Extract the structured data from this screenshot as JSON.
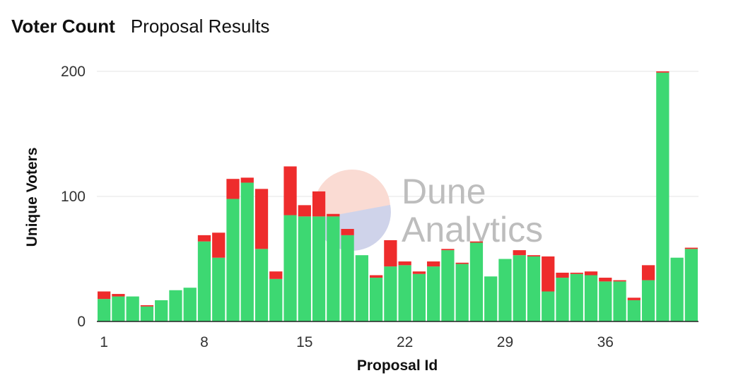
{
  "tabs": [
    {
      "label": "Voter Count",
      "active": true
    },
    {
      "label": "Proposal Results",
      "active": false
    }
  ],
  "watermark": {
    "line1": "Dune",
    "line2": "Analytics"
  },
  "colors": {
    "for": "#3dd872",
    "against": "#ee2c2c",
    "grid": "#e6e6e6"
  },
  "chart_data": {
    "type": "bar",
    "stacked": true,
    "xlabel": "Proposal Id",
    "ylabel": "Unique Voters",
    "ylim": [
      0,
      200
    ],
    "yticks": [
      0,
      100,
      200
    ],
    "xticks": [
      1,
      8,
      15,
      22,
      29,
      36
    ],
    "grid": true,
    "x": [
      1,
      2,
      3,
      4,
      5,
      6,
      7,
      8,
      9,
      10,
      11,
      12,
      13,
      14,
      15,
      16,
      17,
      18,
      19,
      20,
      21,
      22,
      23,
      24,
      25,
      26,
      27,
      28,
      29,
      30,
      31,
      32,
      33,
      34,
      35,
      36,
      37,
      38,
      39,
      40,
      41,
      42
    ],
    "series": [
      {
        "color": "#3dd872",
        "values": [
          18,
          20,
          20,
          12,
          17,
          25,
          27,
          64,
          51,
          98,
          111,
          58,
          34,
          85,
          84,
          84,
          84,
          69,
          53,
          35,
          44,
          45,
          38,
          44,
          57,
          46,
          63,
          36,
          50,
          53,
          52,
          24,
          35,
          38,
          37,
          32,
          32,
          17,
          33,
          199,
          51,
          58
        ]
      },
      {
        "color": "#ee2c2c",
        "values": [
          6,
          2,
          0,
          1,
          0,
          0,
          0,
          5,
          20,
          16,
          4,
          48,
          6,
          39,
          9,
          20,
          2,
          5,
          0,
          2,
          21,
          3,
          2,
          4,
          1,
          1,
          1,
          0,
          0,
          4,
          1,
          28,
          4,
          1,
          3,
          3,
          1,
          2,
          12,
          1,
          0,
          1
        ]
      }
    ]
  }
}
